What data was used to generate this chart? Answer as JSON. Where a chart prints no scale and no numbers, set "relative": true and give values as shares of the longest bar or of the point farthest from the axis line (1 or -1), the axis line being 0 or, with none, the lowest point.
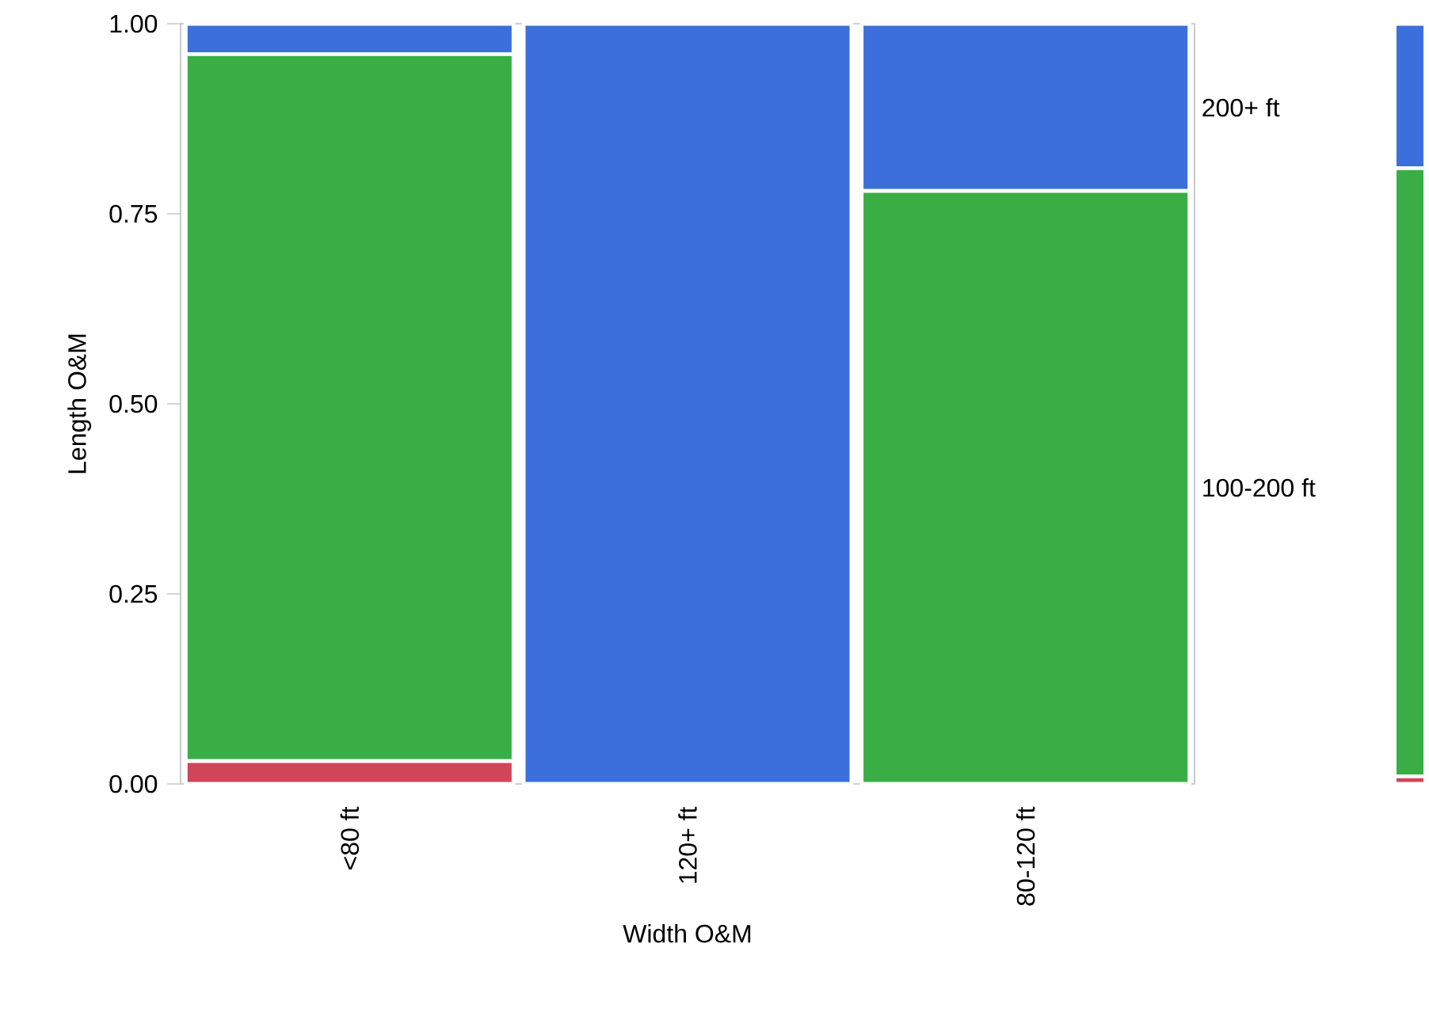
{
  "chart_data": [
    {
      "type": "bar",
      "stacked": true,
      "xlabel": "Width O&M",
      "ylabel": "Length O&M",
      "categories": [
        "<80 ft",
        "120+ ft",
        "80-120 ft"
      ],
      "ylim": [
        0,
        1
      ],
      "yticks": [
        {
          "value": 0,
          "label": "0.00"
        },
        {
          "value": 0.25,
          "label": "0.25"
        },
        {
          "value": 0.5,
          "label": "0.50"
        },
        {
          "value": 0.75,
          "label": "0.75"
        },
        {
          "value": 1,
          "label": "1.00"
        }
      ],
      "grid": false,
      "series": [
        {
          "color": "#d0455a",
          "values": [
            0.03,
            0,
            0
          ]
        },
        {
          "name": "100-200 ft",
          "color": "#39ae45",
          "values": [
            0.93,
            0,
            0.78
          ]
        },
        {
          "name": "200+ ft",
          "color": "#3c6fdc",
          "values": [
            0.04,
            1.0,
            0.22
          ]
        }
      ]
    },
    {
      "type": "bar",
      "stacked": true,
      "categories": [
        null
      ],
      "relative": true,
      "series": [
        {
          "color": "#d0455a",
          "values": [
            0.01
          ]
        },
        {
          "color": "#39ae45",
          "values": [
            0.8
          ]
        },
        {
          "color": "#3c6fdc",
          "values": [
            0.19
          ]
        }
      ]
    }
  ]
}
